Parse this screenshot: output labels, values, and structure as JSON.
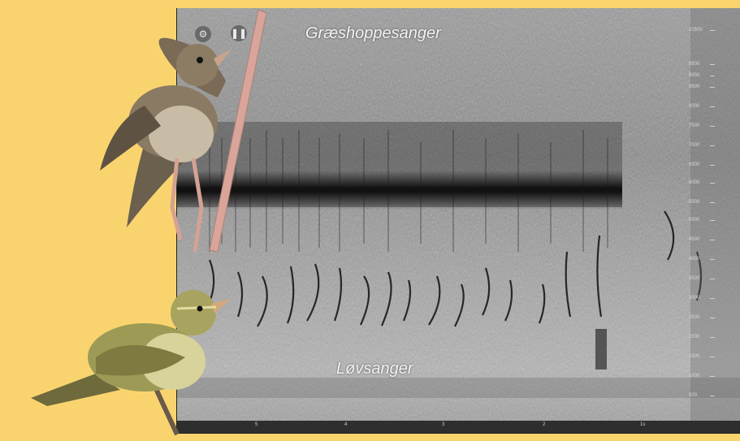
{
  "labels": {
    "top_species": "Græshoppesanger",
    "bottom_species": "Løvsanger"
  },
  "controls": {
    "settings_icon": "gear-icon",
    "pause_icon": "pause-icon"
  },
  "y_axis_ticks": [
    "10500",
    "9500",
    "9000",
    "8500",
    "8000",
    "7500",
    "7000",
    "6500",
    "6000",
    "5500",
    "5000",
    "4500",
    "4000",
    "3500",
    "3000",
    "2500",
    "2000",
    "1500",
    "1000",
    "500"
  ],
  "x_axis_ticks": [
    "5",
    "4",
    "3",
    "2",
    "1s"
  ],
  "colors": {
    "background": "#f9d46e",
    "spectrogram": "#8c8c8c"
  }
}
